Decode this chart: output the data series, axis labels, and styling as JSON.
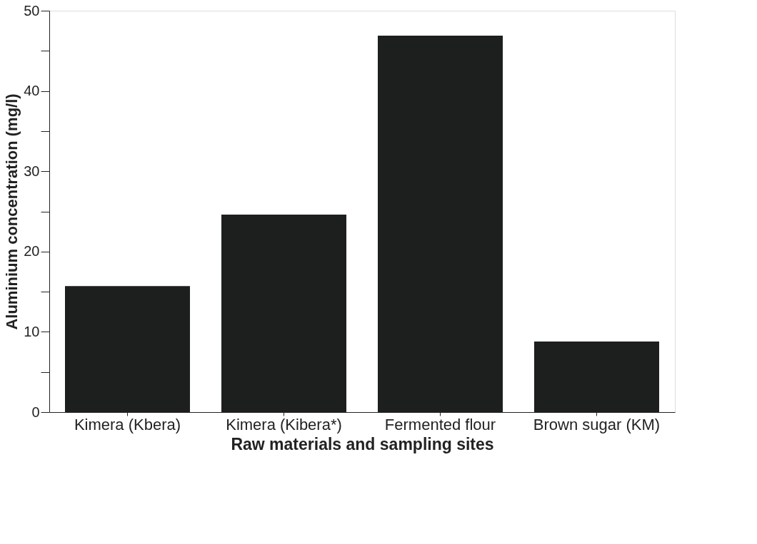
{
  "chart_data": {
    "type": "bar",
    "xlabel": "Raw materials and sampling sites",
    "ylabel": "Aluminium concentration (mg/l)",
    "categories": [
      "Kimera (Kbera)",
      "Kimera (Kibera*)",
      "Fermented flour",
      "Brown sugar (KM)"
    ],
    "values": [
      15.7,
      24.6,
      46.9,
      8.8
    ],
    "color": "#1c1f1e",
    "ylim": [
      0,
      50
    ],
    "yticks": [
      0,
      {
        "value": 5,
        "label": null
      },
      10,
      {
        "value": 15,
        "label": null
      },
      20,
      {
        "value": 25,
        "label": null
      },
      30,
      {
        "value": 35,
        "label": null
      },
      40,
      {
        "value": 45,
        "label": null
      },
      50
    ],
    "grid": false
  }
}
